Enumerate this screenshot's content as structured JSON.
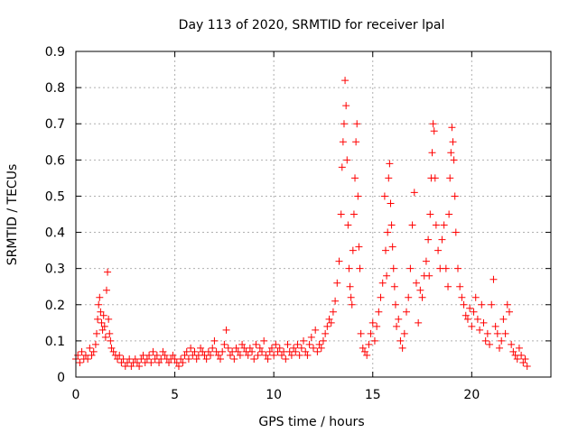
{
  "chart_data": {
    "type": "scatter",
    "title": "Day 113 of 2020, SRMTID for receiver lpal",
    "xlabel": "GPS time / hours",
    "ylabel": "SRMTID / TECUs",
    "xlim": [
      0,
      24
    ],
    "ylim": [
      0,
      0.9
    ],
    "xticks": [
      0,
      5,
      10,
      15,
      20
    ],
    "xtick_labels": [
      "0",
      "5",
      "10",
      "15",
      "20"
    ],
    "yticks": [
      0,
      0.1,
      0.2,
      0.3,
      0.4,
      0.5,
      0.6,
      0.7,
      0.8,
      0.9
    ],
    "ytick_labels": [
      "0",
      "0.1",
      "0.2",
      "0.3",
      "0.4",
      "0.5",
      "0.6",
      "0.7",
      "0.8",
      "0.9"
    ],
    "grid": true,
    "marker": "+",
    "color": "#ff0000",
    "series": [
      {
        "name": "SRMTID",
        "x": [
          0.0,
          0.1,
          0.2,
          0.3,
          0.4,
          0.5,
          0.6,
          0.7,
          0.8,
          0.9,
          1.0,
          1.05,
          1.1,
          1.15,
          1.2,
          1.25,
          1.3,
          1.35,
          1.4,
          1.45,
          1.5,
          1.55,
          1.6,
          1.65,
          1.7,
          1.75,
          1.8,
          1.9,
          2.0,
          2.1,
          2.2,
          2.3,
          2.4,
          2.5,
          2.6,
          2.7,
          2.8,
          2.9,
          3.0,
          3.1,
          3.2,
          3.3,
          3.4,
          3.5,
          3.6,
          3.7,
          3.8,
          3.9,
          4.0,
          4.1,
          4.2,
          4.3,
          4.4,
          4.5,
          4.6,
          4.7,
          4.8,
          4.9,
          5.0,
          5.1,
          5.2,
          5.3,
          5.4,
          5.5,
          5.6,
          5.7,
          5.8,
          5.9,
          6.0,
          6.1,
          6.2,
          6.3,
          6.4,
          6.5,
          6.6,
          6.7,
          6.8,
          6.9,
          7.0,
          7.1,
          7.2,
          7.3,
          7.4,
          7.5,
          7.6,
          7.7,
          7.8,
          7.9,
          8.0,
          8.1,
          8.2,
          8.3,
          8.4,
          8.5,
          8.6,
          8.7,
          8.8,
          8.9,
          9.0,
          9.1,
          9.2,
          9.3,
          9.4,
          9.5,
          9.6,
          9.7,
          9.8,
          9.9,
          10.0,
          10.1,
          10.2,
          10.3,
          10.4,
          10.5,
          10.6,
          10.7,
          10.8,
          10.9,
          11.0,
          11.1,
          11.2,
          11.3,
          11.4,
          11.5,
          11.6,
          11.7,
          11.8,
          11.9,
          12.0,
          12.1,
          12.2,
          12.3,
          12.4,
          12.5,
          12.6,
          12.7,
          12.8,
          12.9,
          13.0,
          13.1,
          13.2,
          13.3,
          13.4,
          13.45,
          13.5,
          13.55,
          13.6,
          13.65,
          13.7,
          13.75,
          13.8,
          13.85,
          13.9,
          13.95,
          14.0,
          14.05,
          14.1,
          14.15,
          14.2,
          14.25,
          14.3,
          14.35,
          14.4,
          14.5,
          14.6,
          14.7,
          14.8,
          14.9,
          15.0,
          15.1,
          15.2,
          15.3,
          15.4,
          15.5,
          15.6,
          15.65,
          15.7,
          15.75,
          15.8,
          15.85,
          15.9,
          15.95,
          16.0,
          16.05,
          16.1,
          16.15,
          16.2,
          16.3,
          16.4,
          16.5,
          16.6,
          16.7,
          16.8,
          16.9,
          17.0,
          17.1,
          17.2,
          17.3,
          17.4,
          17.5,
          17.6,
          17.7,
          17.8,
          17.85,
          17.9,
          17.95,
          18.0,
          18.05,
          18.1,
          18.15,
          18.2,
          18.3,
          18.4,
          18.5,
          18.6,
          18.7,
          18.8,
          18.85,
          18.9,
          18.95,
          19.0,
          19.05,
          19.1,
          19.15,
          19.2,
          19.3,
          19.4,
          19.5,
          19.6,
          19.7,
          19.8,
          19.9,
          20.0,
          20.1,
          20.2,
          20.3,
          20.4,
          20.5,
          20.6,
          20.7,
          20.8,
          20.9,
          21.0,
          21.1,
          21.2,
          21.3,
          21.4,
          21.5,
          21.6,
          21.7,
          21.8,
          21.9,
          22.0,
          22.1,
          22.2,
          22.3,
          22.4,
          22.5,
          22.6,
          22.7,
          22.8
        ],
        "y": [
          0.05,
          0.06,
          0.04,
          0.07,
          0.05,
          0.06,
          0.05,
          0.08,
          0.06,
          0.07,
          0.09,
          0.12,
          0.16,
          0.2,
          0.22,
          0.18,
          0.15,
          0.13,
          0.17,
          0.14,
          0.11,
          0.24,
          0.29,
          0.16,
          0.12,
          0.1,
          0.08,
          0.07,
          0.06,
          0.05,
          0.06,
          0.04,
          0.05,
          0.03,
          0.04,
          0.05,
          0.03,
          0.04,
          0.05,
          0.04,
          0.03,
          0.05,
          0.06,
          0.04,
          0.05,
          0.06,
          0.04,
          0.07,
          0.05,
          0.06,
          0.04,
          0.05,
          0.07,
          0.06,
          0.05,
          0.04,
          0.05,
          0.06,
          0.05,
          0.04,
          0.03,
          0.05,
          0.04,
          0.06,
          0.07,
          0.05,
          0.08,
          0.06,
          0.07,
          0.05,
          0.06,
          0.08,
          0.07,
          0.06,
          0.05,
          0.07,
          0.06,
          0.08,
          0.1,
          0.07,
          0.06,
          0.05,
          0.07,
          0.09,
          0.13,
          0.08,
          0.06,
          0.07,
          0.05,
          0.08,
          0.07,
          0.06,
          0.09,
          0.08,
          0.07,
          0.06,
          0.08,
          0.07,
          0.05,
          0.09,
          0.06,
          0.08,
          0.07,
          0.1,
          0.06,
          0.05,
          0.07,
          0.08,
          0.06,
          0.09,
          0.07,
          0.08,
          0.06,
          0.07,
          0.05,
          0.09,
          0.07,
          0.06,
          0.08,
          0.07,
          0.09,
          0.06,
          0.08,
          0.1,
          0.07,
          0.06,
          0.09,
          0.11,
          0.08,
          0.13,
          0.07,
          0.09,
          0.08,
          0.1,
          0.12,
          0.14,
          0.16,
          0.15,
          0.18,
          0.21,
          0.26,
          0.32,
          0.45,
          0.58,
          0.65,
          0.7,
          0.82,
          0.75,
          0.6,
          0.42,
          0.3,
          0.25,
          0.22,
          0.2,
          0.35,
          0.45,
          0.55,
          0.65,
          0.7,
          0.5,
          0.36,
          0.3,
          0.12,
          0.08,
          0.07,
          0.06,
          0.09,
          0.12,
          0.15,
          0.1,
          0.14,
          0.18,
          0.22,
          0.26,
          0.5,
          0.35,
          0.28,
          0.4,
          0.55,
          0.59,
          0.48,
          0.42,
          0.36,
          0.3,
          0.25,
          0.2,
          0.14,
          0.16,
          0.1,
          0.08,
          0.12,
          0.18,
          0.22,
          0.3,
          0.42,
          0.51,
          0.26,
          0.15,
          0.24,
          0.22,
          0.28,
          0.32,
          0.38,
          0.28,
          0.45,
          0.55,
          0.62,
          0.7,
          0.68,
          0.55,
          0.42,
          0.35,
          0.3,
          0.38,
          0.42,
          0.3,
          0.25,
          0.45,
          0.55,
          0.62,
          0.69,
          0.65,
          0.6,
          0.5,
          0.4,
          0.3,
          0.25,
          0.22,
          0.2,
          0.17,
          0.16,
          0.19,
          0.14,
          0.18,
          0.22,
          0.16,
          0.13,
          0.2,
          0.15,
          0.1,
          0.12,
          0.09,
          0.2,
          0.27,
          0.14,
          0.12,
          0.08,
          0.1,
          0.16,
          0.12,
          0.2,
          0.18,
          0.09,
          0.07,
          0.06,
          0.05,
          0.08,
          0.06,
          0.04,
          0.05,
          0.03
        ]
      }
    ]
  }
}
